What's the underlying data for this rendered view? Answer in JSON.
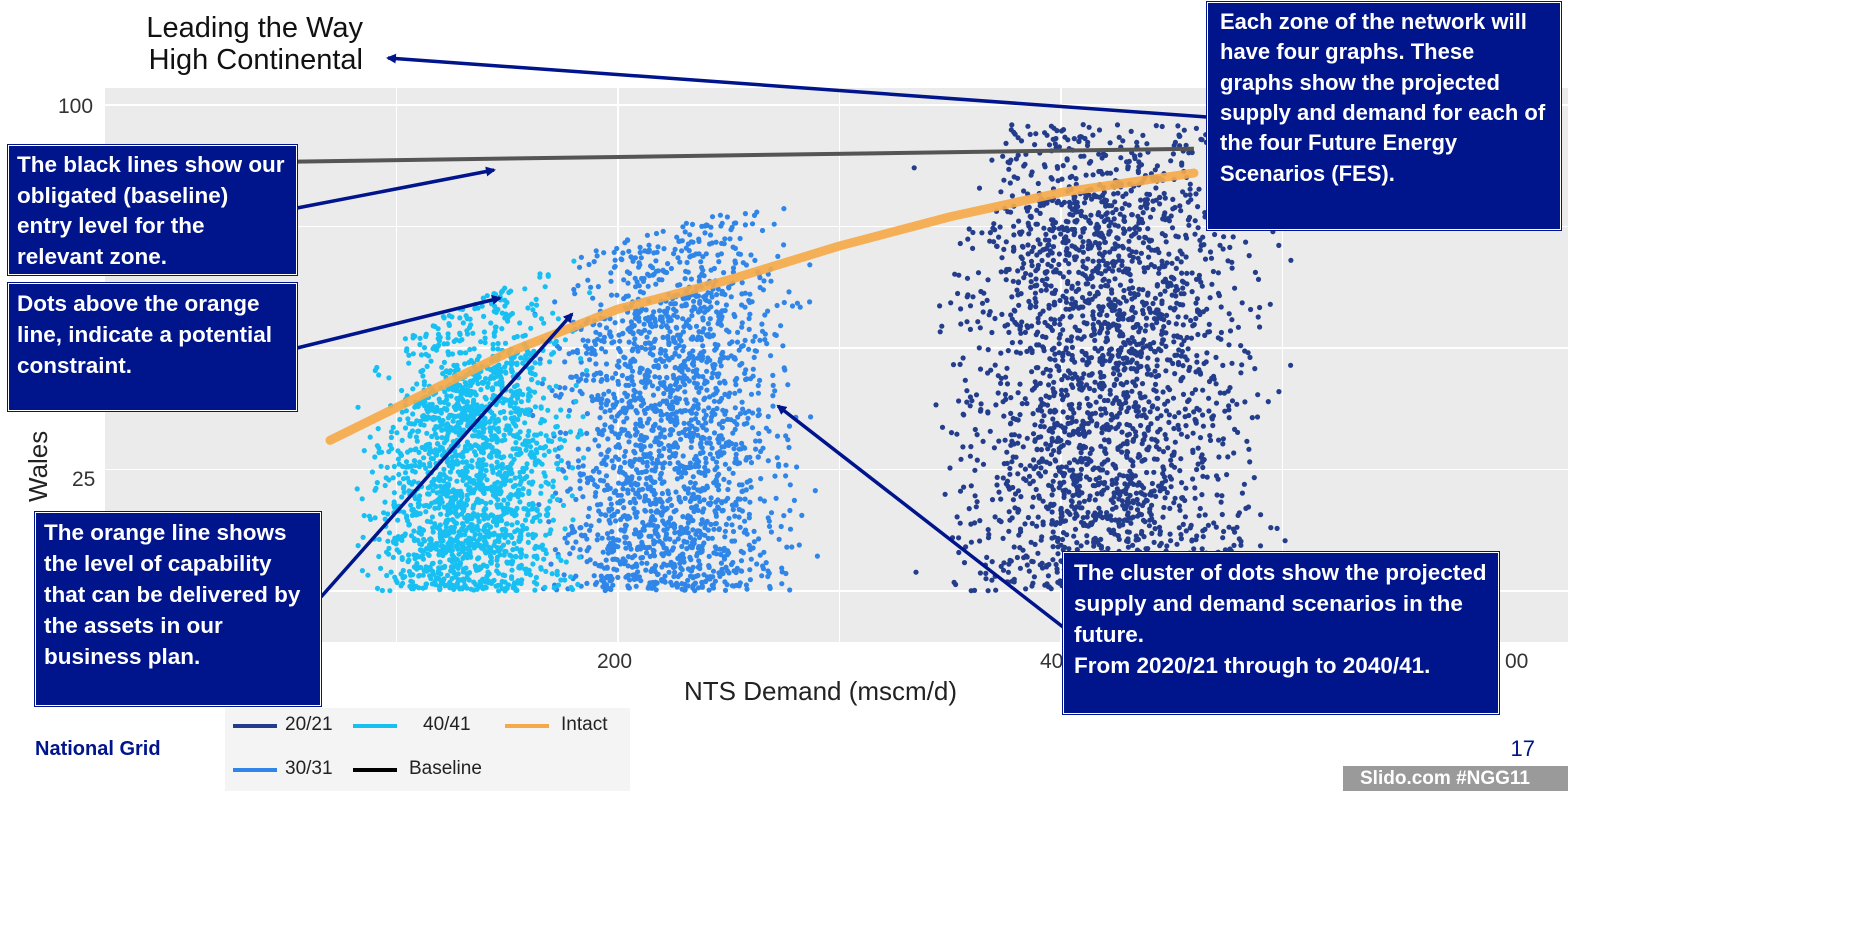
{
  "chart_data": {
    "type": "scatter",
    "title": "Leading the Way\nHigh Continental",
    "title_lines": [
      "Leading the Way",
      "High Continental"
    ],
    "xlabel": "NTS Demand (mscm/d)",
    "ylabel": "Wales",
    "x_ticks_visible": [
      "200",
      "40",
      "00"
    ],
    "y_ticks_visible": [
      "100",
      "25"
    ],
    "xlim": [
      0,
      600
    ],
    "ylim": [
      0,
      100
    ],
    "series": [
      {
        "name": "20/21",
        "color": "#233d8c",
        "x_range": [
          310,
          520
        ],
        "y_range": [
          0,
          60
        ]
      },
      {
        "name": "30/31",
        "color": "#2f86e8",
        "x_range": [
          150,
          300
        ],
        "y_range": [
          0,
          62
        ]
      },
      {
        "name": "40/41",
        "color": "#18bff2",
        "x_range": [
          70,
          210
        ],
        "y_range": [
          0,
          58
        ]
      },
      {
        "name": "Intact",
        "color": "#f5a94a",
        "line": [
          [
            70,
            31
          ],
          [
            150,
            49
          ],
          [
            200,
            58
          ],
          [
            250,
            64
          ],
          [
            300,
            71
          ],
          [
            350,
            77
          ],
          [
            400,
            82
          ],
          [
            460,
            86
          ]
        ]
      },
      {
        "name": "Baseline",
        "color": "#000000",
        "line": [
          [
            0,
            88
          ],
          [
            460,
            91
          ]
        ]
      }
    ],
    "grid": true,
    "legend_position": "bottom",
    "colors": {
      "panel_bg": "#ebebeb",
      "grid": "#ffffff",
      "callout_bg": "#00148c"
    }
  },
  "callouts": {
    "fes": "Each zone of the network will have four graphs. These graphs show the projected supply and demand for each of the four Future Energy Scenarios (FES).",
    "baseline": "The black lines show our obligated (baseline) entry level for the relevant zone.",
    "dots_above": "Dots above the orange line, indicate a potential constraint.",
    "orange_line": "The orange line shows the level of capability that can be delivered by the assets in our business plan.",
    "cluster": "The cluster of dots show the projected supply and demand scenarios in the future.\nFrom 2020/21 through to 2040/41."
  },
  "legend": {
    "items": [
      "20/21",
      "40/41",
      "Intact",
      "30/31",
      "Baseline"
    ]
  },
  "footer": {
    "company": "National Grid",
    "page_number": "17",
    "slido": "Slido.com #NGG11"
  }
}
